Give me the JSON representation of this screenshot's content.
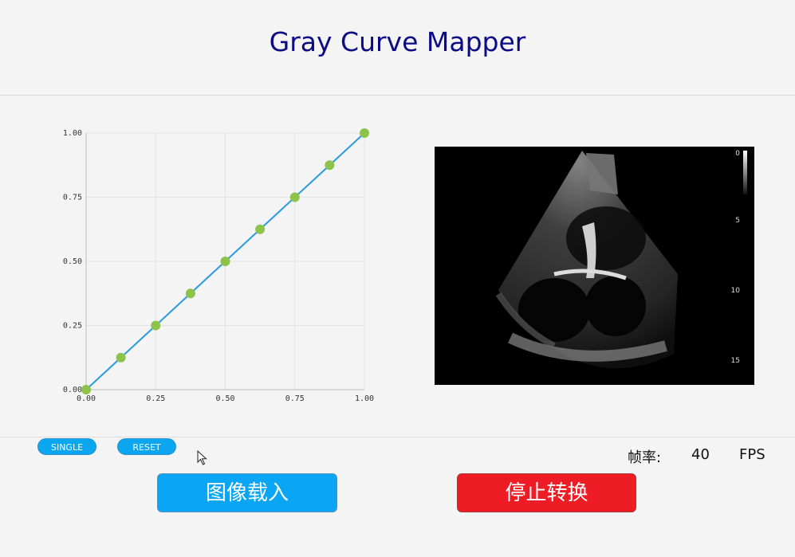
{
  "app": {
    "title": "Gray Curve Mapper"
  },
  "chart_data": {
    "type": "line",
    "x": [
      0,
      0.125,
      0.25,
      0.375,
      0.5,
      0.625,
      0.75,
      0.875,
      1
    ],
    "y": [
      0,
      0.125,
      0.25,
      0.375,
      0.5,
      0.625,
      0.75,
      0.875,
      1
    ],
    "xlim": [
      0,
      1
    ],
    "ylim": [
      0,
      1
    ],
    "x_ticks": [
      "0.00",
      "0.25",
      "0.50",
      "0.75",
      "1.00"
    ],
    "y_ticks": [
      "0.00",
      "0.25",
      "0.50",
      "0.75",
      "1.00"
    ],
    "grid": true,
    "line_color": "#2b9be0",
    "point_color": "#8dc34a"
  },
  "preview": {
    "depth_scale": [
      "0",
      "5",
      "10",
      "15"
    ]
  },
  "controls": {
    "single_label": "SINGLE",
    "reset_label": "RESET",
    "load_label": "图像载入",
    "stop_label": "停止转换"
  },
  "status": {
    "fps_label": "帧率:",
    "fps_value": "40",
    "fps_unit": "FPS"
  },
  "colors": {
    "title": "#0b0b86",
    "accent": "#0aa6f5",
    "danger": "#ee1c24"
  }
}
